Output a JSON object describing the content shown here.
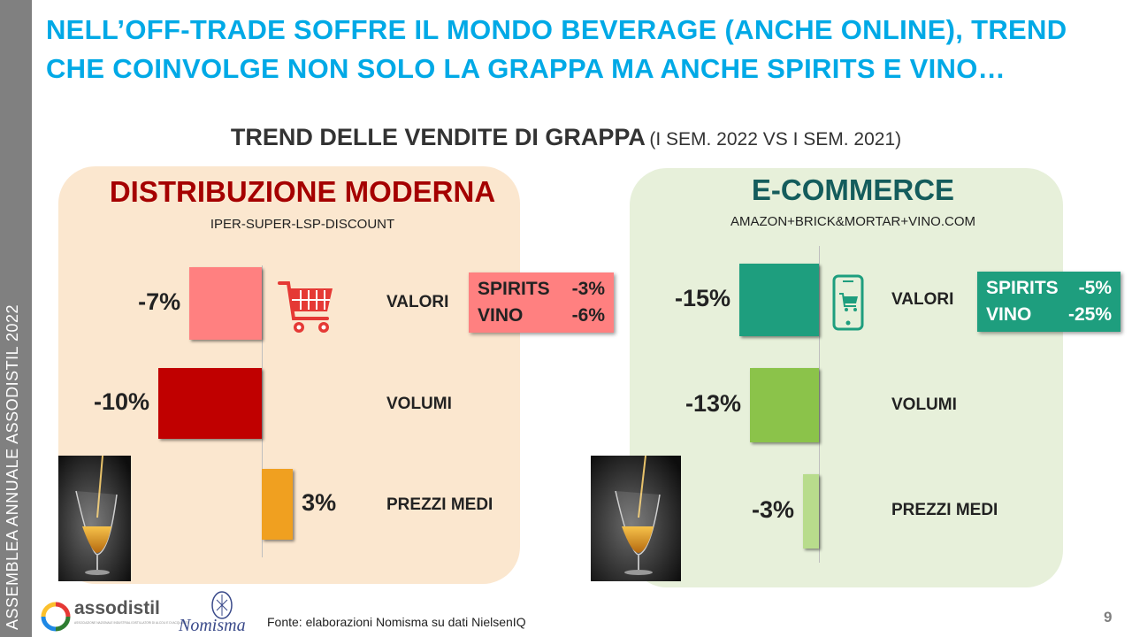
{
  "sidebar": {
    "text": "ASSEMBLEA  ANNUALE ASSODISTIL 2022"
  },
  "headline": "NELL’OFF-TRADE SOFFRE IL MONDO BEVERAGE (ANCHE ONLINE), TREND CHE COINVOLGE NON SOLO LA GRAPPA MA ANCHE SPIRITS E VINO…",
  "chart_title": {
    "main": "TREND DELLE VENDITE DI GRAPPA",
    "period": "(I SEM. 2022 VS I SEM. 2021)"
  },
  "colors": {
    "headline": "#00a9e6",
    "dm_title": "#a50000",
    "ec_title": "#145c5c",
    "dm_valori": "#ff8080",
    "dm_volumi": "#c00000",
    "dm_prezzi": "#f0a020",
    "ec_valori": "#1e9e7e",
    "ec_volumi": "#8bc34a",
    "ec_prezzi": "#b8dc8c",
    "dm_callout_bg": "#ff8080",
    "ec_callout_bg": "#1e9e7e"
  },
  "chart_data": [
    {
      "type": "bar",
      "title": "DISTRIBUZIONE MODERNA",
      "subtitle": "IPER-SUPER-LSP-DISCOUNT",
      "categories": [
        "VALORI",
        "VOLUMI",
        "PREZZI MEDI"
      ],
      "values": [
        -7,
        -10,
        3
      ],
      "value_labels": [
        "-7%",
        "-10%",
        "3%"
      ],
      "xlim": [
        -10,
        10
      ],
      "callout": {
        "lines": [
          {
            "label": "SPIRITS",
            "value": "-3%"
          },
          {
            "label": "VINO",
            "value": "-6%"
          }
        ]
      },
      "icon": "shopping-cart-icon"
    },
    {
      "type": "bar",
      "title": "E-COMMERCE",
      "subtitle": "AMAZON+BRICK&MORTAR+VINO.COM",
      "categories": [
        "VALORI",
        "VOLUMI",
        "PREZZI MEDI"
      ],
      "values": [
        -15,
        -13,
        -3
      ],
      "value_labels": [
        "-15%",
        "-13%",
        "-3%"
      ],
      "xlim": [
        -15,
        15
      ],
      "callout": {
        "lines": [
          {
            "label": "SPIRITS",
            "value": "-5%"
          },
          {
            "label": "VINO",
            "value": "-25%"
          }
        ]
      },
      "icon": "smartphone-cart-icon"
    }
  ],
  "footer": {
    "source": "Fonte: elaborazioni Nomisma su dati NielsenIQ",
    "page_number": "9",
    "logo_assodistil": "assodistil",
    "logo_assodistil_tagline": "ASSOCIAZIONE NAZIONALE INDUSTRIALI DISTILLATORI DI ALCOLI E DI ACQUAVITE",
    "logo_nomisma": "Nomisma"
  }
}
